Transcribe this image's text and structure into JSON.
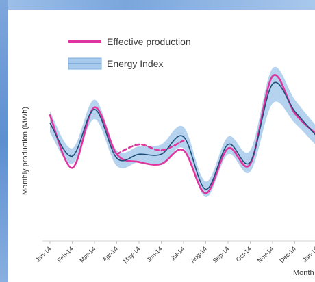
{
  "chart_data": {
    "type": "line",
    "title": "",
    "xlabel": "Month",
    "ylabel": "Monthly production (MWh)",
    "categories": [
      "Jan-14",
      "Feb-14",
      "Mar-14",
      "Apr-14",
      "May-14",
      "Jun-14",
      "Jul-14",
      "Aug-14",
      "Sep-14",
      "Oct-14",
      "Nov-14",
      "Dec-14",
      "Jan-15"
    ],
    "ylim": [
      0,
      100
    ],
    "grid": false,
    "legend_position": "top-left",
    "series": [
      {
        "name": "Effective production",
        "color": "#e0359e",
        "style": "solid",
        "values": [
          62,
          35,
          66,
          42,
          38,
          37,
          44,
          22,
          45,
          37,
          82,
          63,
          52
        ]
      },
      {
        "name": "",
        "color": "#e0359e",
        "style": "dashed",
        "x_range": [
          "Apr-14",
          "Jul-14"
        ],
        "values": [
          null,
          null,
          null,
          42,
          47,
          44,
          49,
          null,
          null,
          null,
          null,
          null,
          null
        ]
      },
      {
        "name": "Energy Index",
        "color": "#1f4e79",
        "band_color": "#9cc3e8",
        "style": "line-with-band",
        "values": [
          58,
          41,
          65,
          40,
          42,
          42,
          51,
          24,
          47,
          38,
          78,
          64,
          51
        ],
        "band_lower": [
          53,
          37,
          60,
          36,
          38,
          37,
          45,
          20,
          42,
          33,
          68,
          58,
          46
        ],
        "band_upper": [
          64,
          45,
          70,
          44,
          46,
          47,
          56,
          28,
          51,
          44,
          86,
          70,
          56
        ]
      }
    ],
    "legend": [
      "Effective production",
      "Energy Index"
    ]
  }
}
